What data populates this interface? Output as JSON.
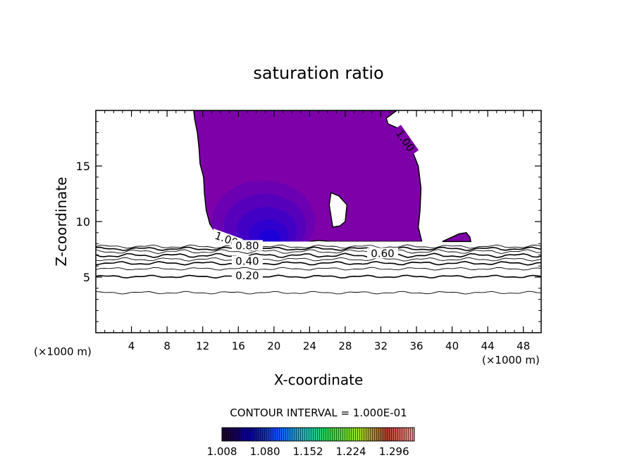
{
  "chart_data": {
    "type": "contour",
    "title": "saturation ratio",
    "xlabel": "X-coordinate",
    "ylabel": "Z-coordinate",
    "x_unit_left": "(×1000 m)",
    "x_unit_right": "(×1000 m)",
    "xlim": [
      0,
      50
    ],
    "ylim": [
      0,
      20
    ],
    "xticks": [
      4,
      8,
      12,
      16,
      20,
      24,
      28,
      32,
      36,
      40,
      44,
      48
    ],
    "yticks": [
      5,
      10,
      15
    ],
    "contour_interval_label": "CONTOUR INTERVAL = 1.000E-01",
    "contour_labels": [
      {
        "text": "1.00",
        "x": 34.6,
        "y": 17.2,
        "angle": 55
      },
      {
        "text": "1.00",
        "x": 14.6,
        "y": 8.3,
        "angle": 20
      },
      {
        "text": "0.80",
        "x": 17.0,
        "y": 7.7,
        "angle": 0
      },
      {
        "text": "0.60",
        "x": 32.2,
        "y": 7.0,
        "angle": 0
      },
      {
        "text": "0.40",
        "x": 17.0,
        "y": 6.3,
        "angle": 0
      },
      {
        "text": "0.20",
        "x": 17.0,
        "y": 5.0,
        "angle": 0
      }
    ],
    "filled_region_saturated": [
      [
        11.0,
        20.0
      ],
      [
        33.8,
        20.0
      ],
      [
        32.6,
        19.3
      ],
      [
        32.8,
        18.8
      ],
      [
        34.2,
        18.3
      ],
      [
        35.0,
        17.5
      ],
      [
        35.6,
        16.2
      ],
      [
        36.2,
        15.0
      ],
      [
        36.5,
        13.0
      ],
      [
        36.4,
        11.0
      ],
      [
        36.2,
        9.5
      ],
      [
        36.6,
        8.2
      ],
      [
        29.0,
        8.2
      ],
      [
        28.0,
        8.2
      ],
      [
        26.5,
        8.2
      ],
      [
        25.0,
        8.3
      ],
      [
        24.0,
        8.2
      ],
      [
        14.5,
        8.2
      ],
      [
        13.5,
        8.9
      ],
      [
        12.8,
        9.8
      ],
      [
        12.4,
        11.0
      ],
      [
        12.2,
        12.5
      ],
      [
        12.1,
        14.0
      ],
      [
        11.7,
        15.2
      ],
      [
        11.6,
        16.5
      ],
      [
        11.4,
        18.0
      ],
      [
        11.1,
        19.2
      ]
    ],
    "filled_hole_subsaturated": [
      [
        26.4,
        12.6
      ],
      [
        27.3,
        12.3
      ],
      [
        28.2,
        11.5
      ],
      [
        28.0,
        10.0
      ],
      [
        27.4,
        9.6
      ],
      [
        26.6,
        9.5
      ],
      [
        26.4,
        10.5
      ],
      [
        26.2,
        11.5
      ]
    ],
    "filled_region_small": [
      [
        38.9,
        8.2
      ],
      [
        40.8,
        8.9
      ],
      [
        41.6,
        9.0
      ],
      [
        42.0,
        8.6
      ],
      [
        42.1,
        8.2
      ]
    ],
    "core_levels": [
      {
        "level": 1.008,
        "cx": 18.8,
        "cy": 10.0,
        "rx": 5.8,
        "ry": 3.7
      },
      {
        "level": 1.02,
        "cx": 19.0,
        "cy": 9.6,
        "rx": 4.6,
        "ry": 2.9
      },
      {
        "level": 1.04,
        "cx": 19.2,
        "cy": 9.2,
        "rx": 3.4,
        "ry": 2.1
      },
      {
        "level": 1.06,
        "cx": 19.4,
        "cy": 8.8,
        "rx": 2.2,
        "ry": 1.4
      },
      {
        "level": 1.08,
        "cx": 19.5,
        "cy": 8.5,
        "rx": 1.2,
        "ry": 0.8
      }
    ],
    "colorbar": {
      "tick_labels": [
        "1.008",
        "1.080",
        "1.152",
        "1.224",
        "1.296"
      ],
      "min": 1.008,
      "max": 1.33,
      "colors": [
        "#200030",
        "#0a0090",
        "#1550ff",
        "#20c0c0",
        "#30e040",
        "#a0e020",
        "#b04030",
        "#ff9090"
      ]
    },
    "contour_lines": [
      {
        "level": 0.9,
        "base": 7.75,
        "amp": 0.1
      },
      {
        "level": 0.8,
        "base": 7.55,
        "amp": 0.1
      },
      {
        "level": 0.7,
        "base": 7.3,
        "amp": 0.12
      },
      {
        "level": 0.6,
        "base": 6.95,
        "amp": 0.12
      },
      {
        "level": 0.5,
        "base": 6.6,
        "amp": 0.1
      },
      {
        "level": 0.4,
        "base": 6.25,
        "amp": 0.1
      },
      {
        "level": 0.3,
        "base": 5.75,
        "amp": 0.08
      },
      {
        "level": 0.2,
        "base": 5.05,
        "amp": 0.08
      },
      {
        "level": 0.1,
        "base": 3.6,
        "amp": 0.08
      }
    ],
    "colors": {
      "fill_base": "#7d00a8",
      "fill_core": "#1c00d8",
      "line": "#000000"
    }
  }
}
